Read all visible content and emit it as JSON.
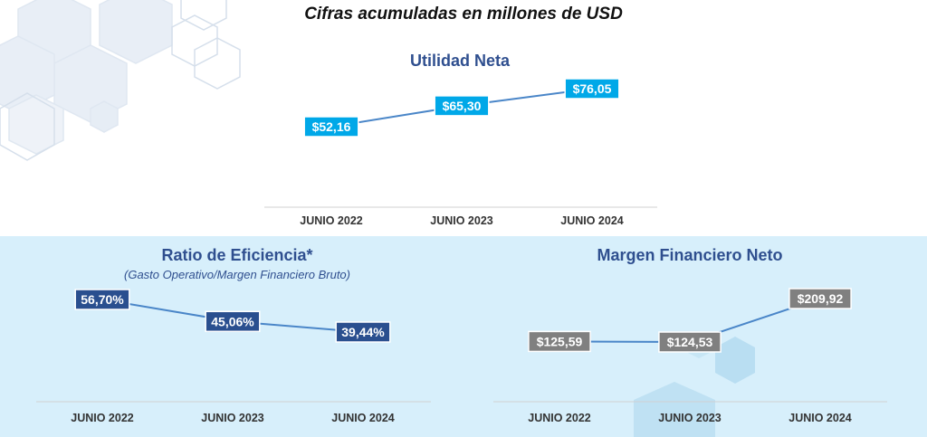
{
  "header": {
    "title": "Cifras acumuladas en millones de USD"
  },
  "colors": {
    "utilidad_label_bg": "#00a8e8",
    "eficiencia_label_bg": "#2a4f8f",
    "margen_label_bg": "#808080",
    "line": "#4a86c8",
    "title_text": "#2f4f8f",
    "bottom_band": "#d7effb"
  },
  "chart_data": [
    {
      "type": "line",
      "title": "Utilidad Neta",
      "categories": [
        "JUNIO 2022",
        "JUNIO 2023",
        "JUNIO 2024"
      ],
      "values": [
        52.16,
        65.3,
        76.05
      ],
      "data_labels": [
        "$52,16",
        "$65,30",
        "$76,05"
      ],
      "label_style": "cyan boxes",
      "grid": false,
      "legend": "none"
    },
    {
      "type": "line",
      "title": "Ratio de Eficiencia*",
      "subtitle": "(Gasto Operativo/Margen Financiero Bruto)",
      "categories": [
        "JUNIO 2022",
        "JUNIO 2023",
        "JUNIO 2024"
      ],
      "values": [
        56.7,
        45.06,
        39.44
      ],
      "data_labels": [
        "56,70%",
        "45,06%",
        "39,44%"
      ],
      "label_style": "navy boxes",
      "grid": false,
      "legend": "none"
    },
    {
      "type": "line",
      "title": "Margen Financiero Neto",
      "categories": [
        "JUNIO 2022",
        "JUNIO 2023",
        "JUNIO 2024"
      ],
      "values": [
        125.59,
        124.53,
        209.92
      ],
      "data_labels": [
        "$125,59",
        "$124,53",
        "$209,92"
      ],
      "label_style": "gray boxes",
      "grid": false,
      "legend": "none"
    }
  ]
}
